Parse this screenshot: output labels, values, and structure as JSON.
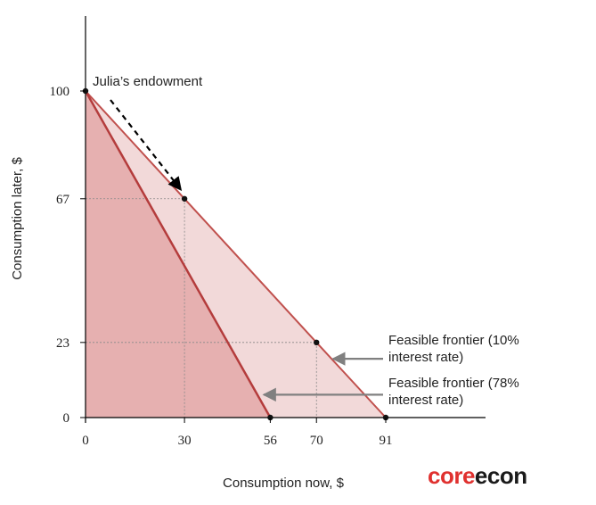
{
  "chart_data": {
    "type": "area",
    "xlabel": "Consumption now, $",
    "ylabel": "Consumption later, $",
    "xlim": [
      0,
      91
    ],
    "ylim": [
      0,
      100
    ],
    "x_ticks": [
      0,
      30,
      56,
      70,
      91
    ],
    "y_ticks": [
      0,
      23,
      67,
      100
    ],
    "endowment": {
      "x": 0,
      "y": 100,
      "label": "Julia’s endowment"
    },
    "series": [
      {
        "name": "Feasible frontier (10% interest rate)",
        "x": [
          0,
          30,
          70,
          91
        ],
        "y": [
          100,
          67,
          23,
          0
        ]
      },
      {
        "name": "Feasible frontier (78% interest rate)",
        "x": [
          0,
          56
        ],
        "y": [
          100,
          0
        ]
      }
    ],
    "marked_points": [
      {
        "x": 30,
        "y": 67
      },
      {
        "x": 70,
        "y": 23
      },
      {
        "x": 56,
        "y": 0
      },
      {
        "x": 91,
        "y": 0
      }
    ],
    "annotations": [
      {
        "lines": [
          "Feasible frontier (10%",
          "interest rate)"
        ],
        "points_to": {
          "x": 75,
          "y": 18
        }
      },
      {
        "lines": [
          "Feasible frontier (78%",
          "interest rate)"
        ],
        "points_to": {
          "x": 54,
          "y": 7
        }
      }
    ],
    "colors": {
      "frontier_line": "#c0504d",
      "region_10": "#f2d9d9",
      "region_78": "#e6b0b0",
      "arrow": "#808080"
    }
  },
  "brand": {
    "part1": "core",
    "part2": "econ"
  }
}
